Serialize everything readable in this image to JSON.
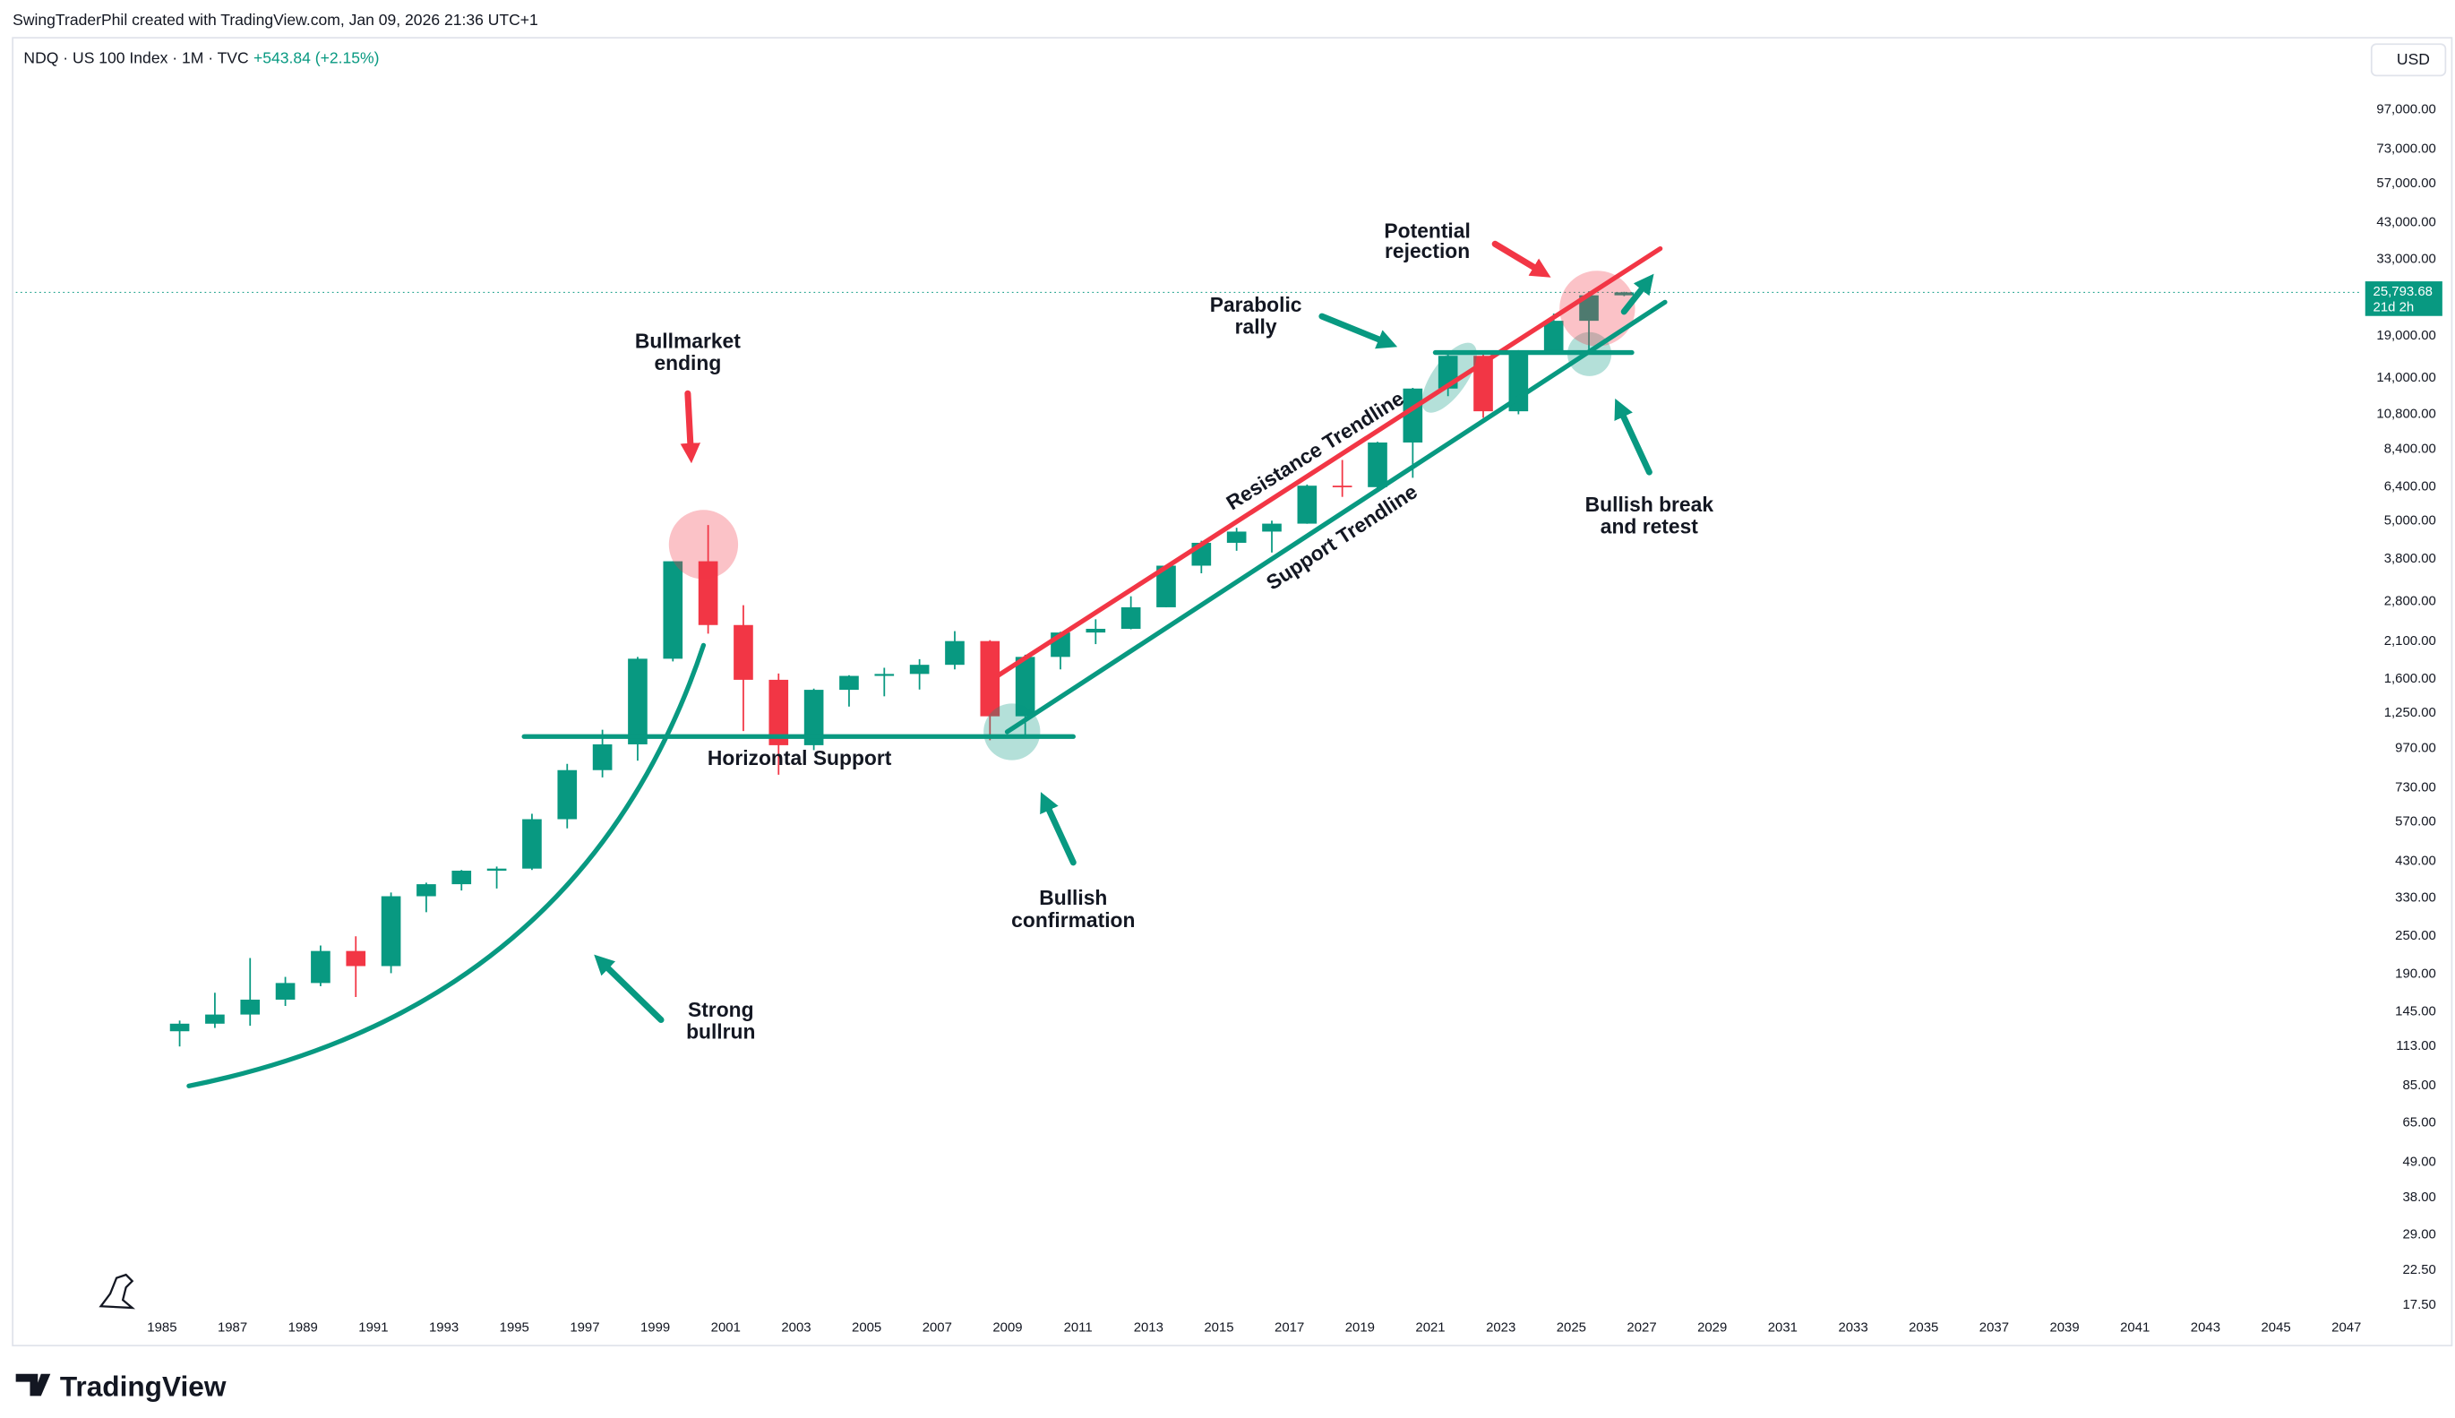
{
  "header": {
    "author": "SwingTraderPhil created with TradingView.com, Jan 09, 2026 21:36 UTC+1",
    "symbol": "NDQ · US 100 Index · 1M · TVC",
    "change": "+543.84 (+2.15%)",
    "currency": "USD",
    "brand": "TradingView"
  },
  "chart_data": {
    "type": "candlestick",
    "log_scale": true,
    "grid": false,
    "up_color": "#089981",
    "down_color": "#f23645",
    "x": [
      1985,
      1986,
      1987,
      1988,
      1989,
      1990,
      1991,
      1992,
      1993,
      1994,
      1995,
      1996,
      1997,
      1998,
      1999,
      2000,
      2001,
      2002,
      2003,
      2004,
      2005,
      2006,
      2007,
      2008,
      2009,
      2010,
      2011,
      2012,
      2013,
      2014,
      2015,
      2016,
      2017,
      2018,
      2019,
      2020,
      2021,
      2022,
      2023,
      2024,
      2025,
      2026
    ],
    "open": [
      125,
      132,
      141,
      157,
      177,
      223,
      200,
      331,
      361,
      398,
      404,
      577,
      822,
      990,
      1836,
      3708,
      2341,
      1577,
      984,
      1467,
      1622,
      1645,
      1757,
      2085,
      1212,
      1860,
      2218,
      2278,
      2661,
      3592,
      4236,
      4593,
      4864,
      6396,
      6330,
      8733,
      12888,
      16320,
      10940,
      16826,
      21012,
      25250
    ],
    "high": [
      135,
      165,
      212,
      185,
      232,
      248,
      340,
      365,
      400,
      410,
      600,
      860,
      1100,
      1860,
      3710,
      4816,
      2700,
      1650,
      1480,
      1630,
      1720,
      1830,
      2240,
      2100,
      1890,
      2230,
      2440,
      2880,
      3600,
      4300,
      4720,
      4970,
      6450,
      7700,
      8780,
      12950,
      16760,
      16680,
      17000,
      22130,
      26000,
      25900
    ],
    "low": [
      112,
      128,
      130,
      150,
      173,
      160,
      190,
      295,
      345,
      350,
      400,
      540,
      780,
      880,
      1800,
      2200,
      1090,
      795,
      950,
      1300,
      1400,
      1470,
      1700,
      1020,
      1040,
      1700,
      2040,
      2270,
      2660,
      3400,
      4000,
      3950,
      4860,
      5900,
      6300,
      6770,
      12200,
      10440,
      10700,
      16500,
      16540,
      25100
    ],
    "close": [
      132,
      141,
      157,
      177,
      223,
      200,
      331,
      361,
      398,
      404,
      577,
      822,
      990,
      1836,
      3708,
      2341,
      1577,
      984,
      1467,
      1622,
      1645,
      1757,
      2085,
      1212,
      1860,
      2218,
      2278,
      2661,
      3592,
      4236,
      4593,
      4864,
      6396,
      6330,
      8733,
      12888,
      16320,
      10940,
      16826,
      21012,
      25250,
      25793.68
    ],
    "xlim": [
      1980.85,
      2047.4
    ],
    "xticks": [
      1985,
      1987,
      1989,
      1991,
      1993,
      1995,
      1997,
      1999,
      2001,
      2003,
      2005,
      2007,
      2009,
      2011,
      2013,
      2015,
      2017,
      2019,
      2021,
      2023,
      2025,
      2027,
      2029,
      2031,
      2033,
      2035,
      2037,
      2039,
      2041,
      2043,
      2045,
      2047
    ],
    "ylim": [
      17,
      160000
    ],
    "yticks": [
      {
        "value": 97000,
        "label": "97,000.00"
      },
      {
        "value": 73000,
        "label": "73,000.00"
      },
      {
        "value": 57000,
        "label": "57,000.00"
      },
      {
        "value": 43000,
        "label": "43,000.00"
      },
      {
        "value": 33000,
        "label": "33,000.00"
      },
      {
        "value": 19000,
        "label": "19,000.00"
      },
      {
        "value": 14000,
        "label": "14,000.00"
      },
      {
        "value": 10800,
        "label": "10,800.00"
      },
      {
        "value": 8400,
        "label": "8,400.00"
      },
      {
        "value": 6400,
        "label": "6,400.00"
      },
      {
        "value": 5000,
        "label": "5,000.00"
      },
      {
        "value": 3800,
        "label": "3,800.00"
      },
      {
        "value": 2800,
        "label": "2,800.00"
      },
      {
        "value": 2100,
        "label": "2,100.00"
      },
      {
        "value": 1600,
        "label": "1,600.00"
      },
      {
        "value": 1250,
        "label": "1,250.00"
      },
      {
        "value": 970,
        "label": "970.00"
      },
      {
        "value": 730,
        "label": "730.00"
      },
      {
        "value": 570,
        "label": "570.00"
      },
      {
        "value": 430,
        "label": "430.00"
      },
      {
        "value": 330,
        "label": "330.00"
      },
      {
        "value": 250,
        "label": "250.00"
      },
      {
        "value": 190,
        "label": "190.00"
      },
      {
        "value": 145,
        "label": "145.00"
      },
      {
        "value": 113,
        "label": "113.00"
      },
      {
        "value": 85,
        "label": "85.00"
      },
      {
        "value": 65,
        "label": "65.00"
      },
      {
        "value": 49,
        "label": "49.00"
      },
      {
        "value": 38,
        "label": "38.00"
      },
      {
        "value": 29,
        "label": "29.00"
      },
      {
        "value": 22.5,
        "label": "22.50"
      },
      {
        "value": 17.5,
        "label": "17.50"
      }
    ],
    "last_price": {
      "value": 25793.68,
      "label": "25,793.68"
    },
    "countdown": "21d 2h",
    "annotations": {
      "bullmarket": [
        "Bullmarket",
        "ending"
      ],
      "bullrun": [
        "Strong",
        "bullrun"
      ],
      "horizontal": "Horizontal Support",
      "confirmation": [
        "Bullish",
        "confirmation"
      ],
      "resistance": "Resistance Trendline",
      "support": "Support Trendline",
      "parabolic": [
        "Parabolic",
        "rally"
      ],
      "rejection": [
        "Potential",
        "rejection"
      ],
      "retest": [
        "Bullish break",
        "and retest"
      ]
    }
  }
}
